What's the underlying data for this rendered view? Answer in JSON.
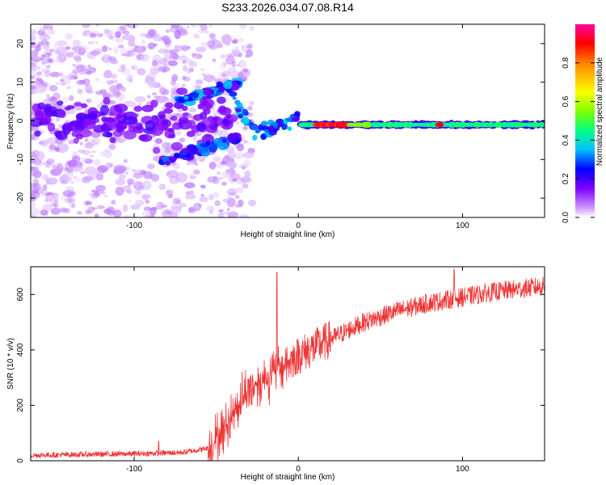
{
  "title": "S233.2026.034.07.08.R14",
  "chart_data": [
    {
      "type": "heatmap",
      "title": "",
      "xlabel": "Height of straight line (km)",
      "ylabel": "Frequency (Hz)",
      "xlim": [
        -163,
        150
      ],
      "ylim": [
        -25,
        25
      ],
      "x_ticks": [
        "-100",
        "0",
        "100"
      ],
      "y_ticks": [
        "-20",
        "-10",
        "0",
        "10",
        "20"
      ],
      "colorbar": {
        "label": "Normalized spectral amplitude",
        "range": [
          0,
          1
        ],
        "ticks": [
          "0.0",
          "0.2",
          "0.4",
          "0.6",
          "0.8"
        ],
        "colors": [
          "#ffffff",
          "#cc99ff",
          "#8000ff",
          "#0000ff",
          "#00c0ff",
          "#00ff80",
          "#80ff00",
          "#ffff00",
          "#ff8000",
          "#ff0000",
          "#ff00a0"
        ]
      },
      "features": {
        "noise_region_x": [
          -163,
          -35
        ],
        "band_center_hz": -1,
        "band_x": [
          5,
          150
        ],
        "peak_amplitude_x": [
          -5,
          30
        ]
      }
    },
    {
      "type": "line",
      "title": "",
      "xlabel": "Height of straight line (km)",
      "ylabel": "SNR (10 * v/v)",
      "xlim": [
        -163,
        150
      ],
      "ylim": [
        0,
        700
      ],
      "x_ticks": [
        "-100",
        "0",
        "100"
      ],
      "y_ticks": [
        "0",
        "200",
        "400",
        "600"
      ],
      "color": "#ee3333",
      "trend": [
        [
          -163,
          20
        ],
        [
          -100,
          25
        ],
        [
          -70,
          30
        ],
        [
          -55,
          45
        ],
        [
          -45,
          110
        ],
        [
          -40,
          170
        ],
        [
          -35,
          220
        ],
        [
          -30,
          260
        ],
        [
          -25,
          280
        ],
        [
          -20,
          300
        ],
        [
          -15,
          320
        ],
        [
          -10,
          340
        ],
        [
          -5,
          360
        ],
        [
          0,
          380
        ],
        [
          10,
          410
        ],
        [
          20,
          440
        ],
        [
          30,
          470
        ],
        [
          40,
          500
        ],
        [
          50,
          520
        ],
        [
          60,
          540
        ],
        [
          80,
          570
        ],
        [
          100,
          590
        ],
        [
          120,
          610
        ],
        [
          150,
          630
        ]
      ],
      "spikes": [
        [
          -13,
          680
        ],
        [
          95,
          690
        ],
        [
          -85,
          70
        ]
      ]
    }
  ]
}
